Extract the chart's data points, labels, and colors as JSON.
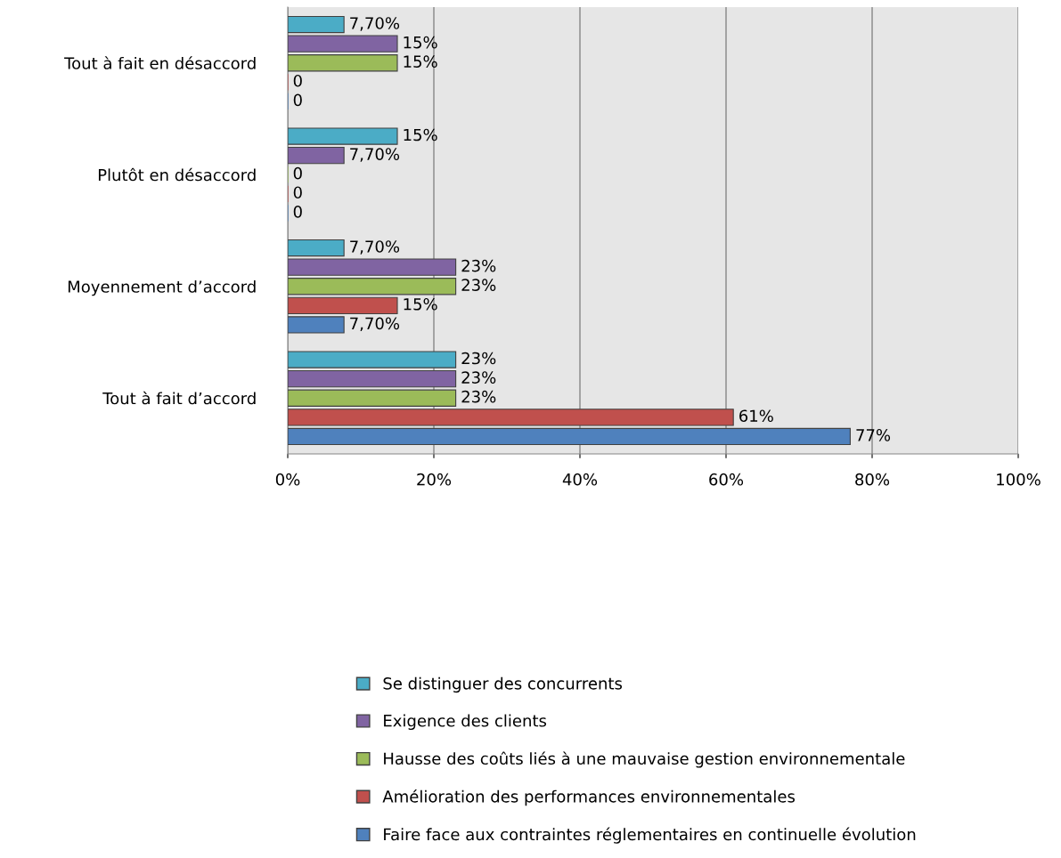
{
  "chart_data": {
    "type": "bar",
    "orientation": "horizontal",
    "categories": [
      "Tout à fait en désaccord",
      "Plutôt en désaccord",
      "Moyennement d’accord",
      "Tout à fait d’accord"
    ],
    "series": [
      {
        "name": "Se distinguer des concurrents",
        "color": "#4bacc6",
        "values": [
          7.7,
          15,
          7.7,
          23
        ],
        "value_labels": [
          "7,70%",
          "15%",
          "7,70%",
          "23%"
        ]
      },
      {
        "name": "Exigence des clients",
        "color": "#8064a2",
        "values": [
          15,
          7.7,
          23,
          23
        ],
        "value_labels": [
          "15%",
          "7,70%",
          "23%",
          "23%"
        ]
      },
      {
        "name": "Hausse des coûts liés à une mauvaise gestion environnementale",
        "color": "#9bbb59",
        "values": [
          15,
          0,
          23,
          23
        ],
        "value_labels": [
          "15%",
          "0",
          "23%",
          "23%"
        ]
      },
      {
        "name": "Amélioration des performances environnementales",
        "color": "#c0504d",
        "values": [
          0,
          0,
          15,
          61
        ],
        "value_labels": [
          "0",
          "0",
          "15%",
          "61%"
        ]
      },
      {
        "name": "Faire face aux contraintes réglementaires en continuelle évolution",
        "color": "#4f81bd",
        "values": [
          0,
          0,
          7.7,
          77
        ],
        "value_labels": [
          "0",
          "0",
          "7,70%",
          "77%"
        ]
      }
    ],
    "xlim": [
      0,
      100
    ],
    "xticks": [
      {
        "value": 0,
        "label": "0%"
      },
      {
        "value": 20,
        "label": "20%"
      },
      {
        "value": 40,
        "label": "40%"
      },
      {
        "value": 60,
        "label": "60%"
      },
      {
        "value": 80,
        "label": "80%"
      },
      {
        "value": 100,
        "label": "100%"
      }
    ],
    "grid": "x",
    "legend": "bottom"
  }
}
